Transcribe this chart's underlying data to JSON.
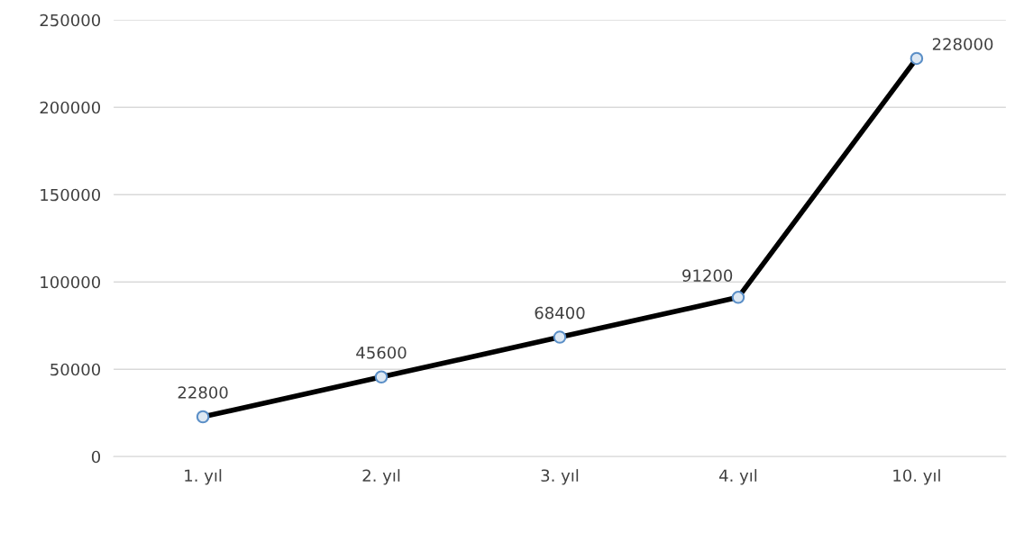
{
  "chart_data": {
    "type": "line",
    "categories": [
      "1. yıl",
      "2. yıl",
      "3. yıl",
      "4. yıl",
      "10. yıl"
    ],
    "series": [
      {
        "color": "#000000",
        "values": [
          22800,
          45600,
          68400,
          91200,
          228000
        ]
      }
    ],
    "ylim": [
      0,
      250000
    ],
    "yticks": [
      0,
      50000,
      100000,
      150000,
      200000,
      250000
    ],
    "grid": "y",
    "marker": "circle",
    "line_style": "solid",
    "data_labels": true
  }
}
